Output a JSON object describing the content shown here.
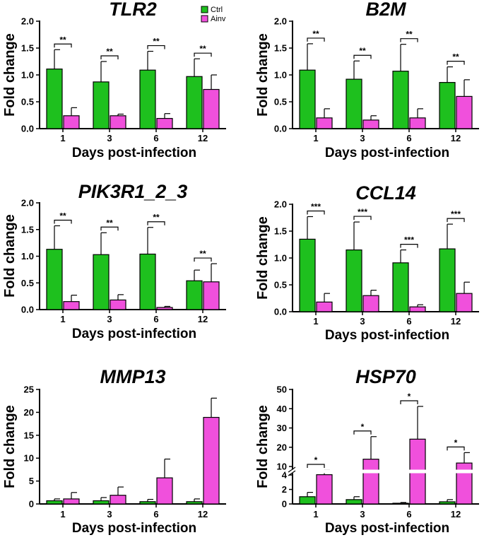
{
  "colors": {
    "ctrl": "#1ec01e",
    "ainv": "#f050dc",
    "axis": "#000000"
  },
  "legend": {
    "series": [
      "Ctrl",
      "Ainv"
    ]
  },
  "chart_data": [
    {
      "type": "bar",
      "title": "TLR2",
      "categories": [
        "1",
        "3",
        "6",
        "12"
      ],
      "xlabel": "Days post-infection",
      "ylabel": "Fold change",
      "ylim": [
        0,
        2.0
      ],
      "yticks": [
        "0.0",
        "0.5",
        "1.0",
        "1.5",
        "2.0"
      ],
      "series": [
        {
          "name": "Ctrl",
          "values": [
            1.11,
            0.87,
            1.09,
            0.97
          ],
          "errors": [
            0.36,
            0.38,
            0.35,
            0.33
          ]
        },
        {
          "name": "Ainv",
          "values": [
            0.24,
            0.24,
            0.19,
            0.73
          ],
          "errors": [
            0.15,
            0.03,
            0.09,
            0.27
          ]
        }
      ],
      "significance": [
        "**",
        "**",
        "**",
        "**"
      ]
    },
    {
      "type": "bar",
      "title": "B2M",
      "categories": [
        "1",
        "3",
        "6",
        "12"
      ],
      "xlabel": "Days post-infection",
      "ylabel": "Fold change",
      "ylim": [
        0,
        2.0
      ],
      "yticks": [
        "0.0",
        "0.5",
        "1.0",
        "1.5",
        "2.0"
      ],
      "series": [
        {
          "name": "Ctrl",
          "values": [
            1.09,
            0.92,
            1.07,
            0.86
          ],
          "errors": [
            0.49,
            0.34,
            0.5,
            0.29
          ]
        },
        {
          "name": "Ainv",
          "values": [
            0.2,
            0.16,
            0.2,
            0.6
          ],
          "errors": [
            0.17,
            0.08,
            0.17,
            0.31
          ]
        }
      ],
      "significance": [
        "**",
        "**",
        "**",
        "**"
      ]
    },
    {
      "type": "bar",
      "title": "PIK3R1_2_3",
      "categories": [
        "1",
        "3",
        "6",
        "12"
      ],
      "xlabel": "Days post-infection",
      "ylabel": "Fold change",
      "ylim": [
        0,
        2.0
      ],
      "yticks": [
        "0.0",
        "0.5",
        "1.0",
        "1.5",
        "2.0"
      ],
      "series": [
        {
          "name": "Ctrl",
          "values": [
            1.13,
            1.03,
            1.04,
            0.54
          ],
          "errors": [
            0.44,
            0.41,
            0.5,
            0.2
          ]
        },
        {
          "name": "Ainv",
          "values": [
            0.15,
            0.18,
            0.04,
            0.52
          ],
          "errors": [
            0.12,
            0.1,
            0.02,
            0.34
          ]
        }
      ],
      "significance": [
        "**",
        "**",
        "**",
        "**"
      ]
    },
    {
      "type": "bar",
      "title": "CCL14",
      "categories": [
        "1",
        "3",
        "6",
        "12"
      ],
      "xlabel": "Days post-infection",
      "ylabel": "Fold change",
      "ylim": [
        0,
        2.0
      ],
      "yticks": [
        "0.0",
        "0.5",
        "1.0",
        "1.5",
        "2.0"
      ],
      "series": [
        {
          "name": "Ctrl",
          "values": [
            1.35,
            1.15,
            0.91,
            1.17
          ],
          "errors": [
            0.42,
            0.52,
            0.24,
            0.46
          ]
        },
        {
          "name": "Ainv",
          "values": [
            0.18,
            0.3,
            0.09,
            0.34
          ],
          "errors": [
            0.16,
            0.1,
            0.04,
            0.21
          ]
        }
      ],
      "significance": [
        "***",
        "***",
        "***",
        "***"
      ]
    },
    {
      "type": "bar",
      "title": "MMP13",
      "categories": [
        "1",
        "3",
        "6",
        "12"
      ],
      "xlabel": "Days post-infection",
      "ylabel": "Fold change",
      "ylim": [
        0,
        25
      ],
      "yticks": [
        "0",
        "5",
        "10",
        "15",
        "20",
        "25"
      ],
      "series": [
        {
          "name": "Ctrl",
          "values": [
            0.7,
            0.7,
            0.5,
            0.5
          ],
          "errors": [
            0.4,
            0.7,
            0.5,
            0.6
          ]
        },
        {
          "name": "Ainv",
          "values": [
            1.1,
            1.9,
            5.7,
            18.9
          ],
          "errors": [
            1.4,
            1.8,
            4.1,
            4.2
          ]
        }
      ],
      "significance": []
    },
    {
      "type": "bar",
      "title": "HSP70",
      "categories": [
        "1",
        "3",
        "6",
        "12"
      ],
      "xlabel": "Days post-infection",
      "ylabel": "Fold change",
      "ylim": [
        0,
        50
      ],
      "axis_break": [
        4,
        10
      ],
      "yticks": [
        "0",
        "2",
        "4",
        "10",
        "20",
        "30",
        "40",
        "50"
      ],
      "series": [
        {
          "name": "Ctrl",
          "values": [
            1.0,
            0.6,
            0.1,
            0.3
          ],
          "errors": [
            0.6,
            0.4,
            0.1,
            0.3
          ]
        },
        {
          "name": "Ainv",
          "values": [
            4.2,
            13.8,
            24.2,
            11.8
          ],
          "errors": [
            3.3,
            11.7,
            17.0,
            5.4
          ]
        }
      ],
      "significance": [
        "*",
        "*",
        "*",
        "*"
      ]
    }
  ]
}
